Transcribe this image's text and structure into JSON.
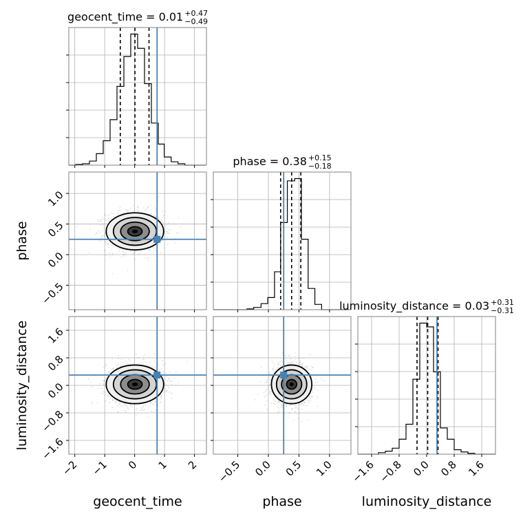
{
  "chart_data": {
    "type": "corner",
    "params": [
      "geocent_time",
      "phase",
      "luminosity_distance"
    ],
    "truths": {
      "geocent_time": 0.75,
      "phase": 0.25,
      "luminosity_distance": 0.3
    },
    "grid": true,
    "panels": {
      "geocent_time": {
        "title_name": "geocent_time",
        "median": "0.01",
        "plus": "+0.47",
        "minus": "−0.49",
        "quantiles": [
          -0.48,
          0.01,
          0.48
        ],
        "xlim": [
          -2.2,
          2.4
        ],
        "xticks": [
          -2,
          -1,
          0,
          1,
          2
        ],
        "xtick_labels": [
          "−2",
          "−1",
          "0",
          "1",
          "2"
        ],
        "hist_edges": [
          -2.2,
          -1.97,
          -1.74,
          -1.51,
          -1.28,
          -1.05,
          -0.82,
          -0.59,
          -0.36,
          -0.13,
          0.1,
          0.33,
          0.56,
          0.79,
          0.99,
          1.22,
          1.45,
          1.68,
          1.91,
          2.14,
          2.37
        ],
        "hist_counts": [
          0,
          1,
          2,
          6,
          17,
          36,
          67,
          116,
          160,
          193,
          172,
          120,
          62,
          31,
          12,
          5,
          2,
          0,
          0,
          0
        ]
      },
      "phase": {
        "title_name": "phase",
        "median": "0.38",
        "plus": "+0.15",
        "minus": "−0.18",
        "quantiles": [
          0.2,
          0.38,
          0.53
        ],
        "xlim": [
          -0.9,
          1.35
        ],
        "xticks": [
          -0.5,
          0.0,
          0.5,
          1.0
        ],
        "xtick_labels": [
          "−0.5",
          "0.0",
          "0.5",
          "1.0"
        ],
        "yticks": [
          -0.5,
          0.0,
          0.5,
          1.0
        ],
        "ytick_labels": [
          "−0.5",
          "0.0",
          "0.5",
          "1.0"
        ],
        "hist_edges": [
          -0.9,
          -0.79,
          -0.68,
          -0.57,
          -0.46,
          -0.35,
          -0.24,
          -0.12,
          -0.01,
          0.1,
          0.2,
          0.31,
          0.43,
          0.54,
          0.65,
          0.76,
          0.87,
          0.98,
          1.09,
          1.2,
          1.31
        ],
        "hist_counts": [
          0,
          0,
          0,
          0,
          0,
          1,
          3,
          8,
          16,
          50,
          115,
          170,
          173,
          93,
          28,
          7,
          0,
          0,
          0,
          0
        ]
      },
      "luminosity_distance": {
        "title_name": "luminosity_distance",
        "median": "0.03",
        "plus": "+0.31",
        "minus": "−0.31",
        "quantiles": [
          -0.28,
          0.03,
          0.33
        ],
        "xlim": [
          -2.0,
          2.0
        ],
        "xticks": [
          -1.6,
          -0.8,
          0.0,
          0.8,
          1.6
        ],
        "xtick_labels": [
          "−1.6",
          "−0.8",
          "0.0",
          "0.8",
          "1.6"
        ],
        "yticks": [
          -1.6,
          -0.8,
          0.0,
          0.8,
          1.6
        ],
        "ytick_labels": [
          "−1.6",
          "−0.8",
          "0.0",
          "0.8",
          "1.6"
        ],
        "hist_edges": [
          -2.0,
          -1.8,
          -1.6,
          -1.4,
          -1.2,
          -1.0,
          -0.8,
          -0.6,
          -0.4,
          -0.2,
          0.0,
          0.2,
          0.4,
          0.6,
          0.8,
          1.0,
          1.2,
          1.4,
          1.6,
          1.8,
          2.0
        ],
        "hist_counts": [
          0,
          0,
          0,
          2,
          4,
          8,
          20,
          40,
          100,
          175,
          170,
          110,
          35,
          20,
          6,
          3,
          1,
          0,
          0,
          0
        ]
      }
    },
    "xlabels": [
      "geocent_time",
      "phase",
      "luminosity_distance"
    ],
    "ylabels": [
      "phase",
      "luminosity_distance"
    ],
    "colors": {
      "truth": "#4682b4",
      "hist": "#000000",
      "grid": "#b0b0b0",
      "scatter": "#a9a9a9"
    }
  }
}
